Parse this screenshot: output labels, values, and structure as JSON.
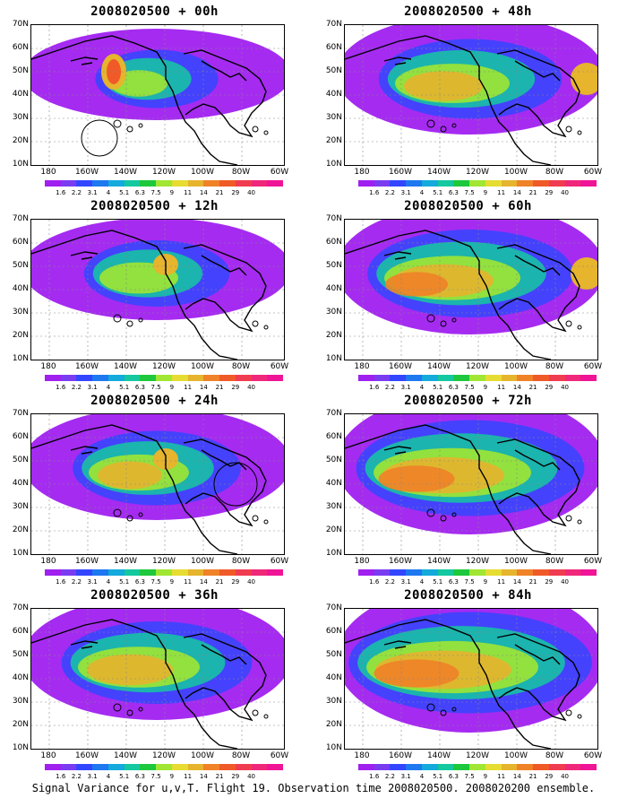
{
  "panels": [
    {
      "title": "2008020500 + 00h",
      "intensity": 0.15,
      "variant": "00h"
    },
    {
      "title": "2008020500 + 12h",
      "intensity": 0.3,
      "variant": "12h"
    },
    {
      "title": "2008020500 + 24h",
      "intensity": 0.45,
      "variant": "24h"
    },
    {
      "title": "2008020500 + 36h",
      "intensity": 0.6,
      "variant": "36h"
    },
    {
      "title": "2008020500 + 48h",
      "intensity": 0.55,
      "variant": "48h"
    },
    {
      "title": "2008020500 + 60h",
      "intensity": 0.7,
      "variant": "60h"
    },
    {
      "title": "2008020500 + 72h",
      "intensity": 0.85,
      "variant": "72h"
    },
    {
      "title": "2008020500 + 84h",
      "intensity": 0.95,
      "variant": "84h"
    }
  ],
  "lat_labels": [
    "70N",
    "60N",
    "50N",
    "40N",
    "30N",
    "20N",
    "10N"
  ],
  "lon_labels": [
    "180",
    "160W",
    "140W",
    "120W",
    "100W",
    "80W",
    "60W"
  ],
  "colorbar": {
    "colors": [
      "#a020f0",
      "#7a3cf0",
      "#3246ff",
      "#1e78f0",
      "#14aadc",
      "#14c8a0",
      "#1ec83c",
      "#a0e632",
      "#e6dc32",
      "#e6b42d",
      "#f08228",
      "#f05a28",
      "#f03c50",
      "#f0287a",
      "#f01496"
    ],
    "labels": [
      "1.6",
      "2.2",
      "3.1",
      "4",
      "5.1",
      "6.3",
      "7.5",
      "9",
      "11",
      "14",
      "21",
      "29",
      "40"
    ]
  },
  "caption": "Signal Variance for u,v,T. Flight 19. Observation time 2008020500. 2008020200 ensemble."
}
